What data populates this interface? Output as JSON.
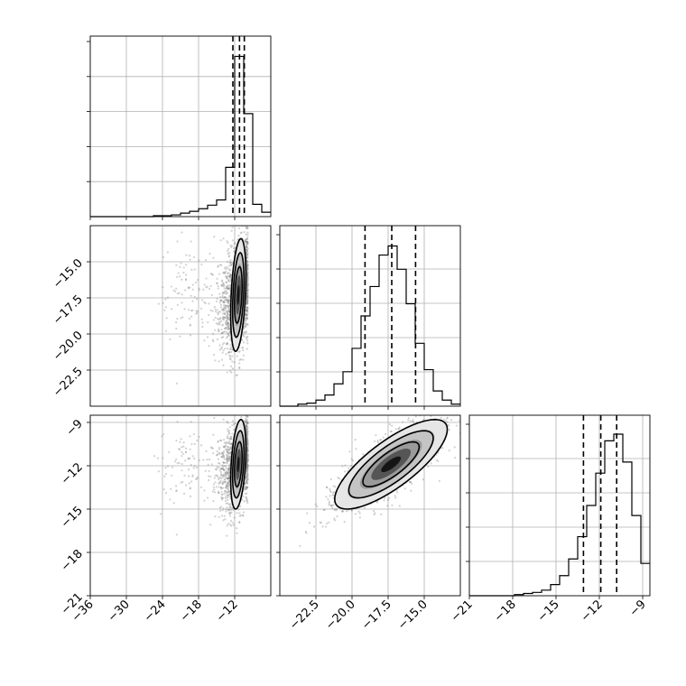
{
  "chart_data": {
    "type": "corner",
    "parameters": [
      {
        "range": [
          -36,
          -6
        ],
        "ticks": [
          -36,
          -30,
          -24,
          -18,
          -12
        ],
        "tick_labels": [
          "−36",
          "−30",
          "−24",
          "−18",
          "−12"
        ]
      },
      {
        "range": [
          -25,
          -12.5
        ],
        "ticks": [
          -22.5,
          -20.0,
          -17.5,
          -15.0
        ],
        "tick_labels": [
          "−22.5",
          "−20.0",
          "−17.5",
          "−15.0"
        ]
      },
      {
        "range": [
          -21,
          -8.5
        ],
        "ticks": [
          -21,
          -18,
          -15,
          -12,
          -9
        ],
        "tick_labels": [
          "−21",
          "−18",
          "−15",
          "−12",
          "−9"
        ]
      }
    ],
    "histograms": [
      {
        "param": 0,
        "bin_edges": [
          -36,
          -34.5,
          -33,
          -31.5,
          -30,
          -28.5,
          -27,
          -25.5,
          -24,
          -22.5,
          -21,
          -19.5,
          -18,
          -16.5,
          -15,
          -13.5,
          -12,
          -10.5,
          -9,
          -7.5,
          -6
        ],
        "counts": [
          0,
          0,
          0,
          0,
          0,
          0,
          0,
          1,
          1,
          2,
          4,
          6,
          9,
          13,
          19,
          56,
          182,
          117,
          14,
          5
        ],
        "quantiles": [
          -12.3,
          -11.2,
          -10.4
        ],
        "ymax": 205
      },
      {
        "param": 1,
        "bin_edges": [
          -25,
          -24.375,
          -23.75,
          -23.125,
          -22.5,
          -21.875,
          -21.25,
          -20.625,
          -20,
          -19.375,
          -18.75,
          -18.125,
          -17.5,
          -16.875,
          -16.25,
          -15.625,
          -15,
          -14.375,
          -13.75,
          -13.125,
          -12.5
        ],
        "counts": [
          0,
          0,
          2,
          3,
          6,
          11,
          22,
          34,
          57,
          89,
          118,
          149,
          158,
          135,
          101,
          62,
          36,
          15,
          6,
          2
        ],
        "quantiles": [
          -19.1,
          -17.25,
          -15.6
        ],
        "ymax": 178
      },
      {
        "param": 2,
        "bin_edges": [
          -21,
          -20.375,
          -19.75,
          -19.125,
          -18.5,
          -17.875,
          -17.25,
          -16.625,
          -16,
          -15.375,
          -14.75,
          -14.125,
          -13.5,
          -12.875,
          -12.25,
          -11.625,
          -11,
          -10.375,
          -9.75,
          -9.125,
          -8.5
        ],
        "counts": [
          0,
          0,
          0,
          0,
          0,
          1,
          2,
          3,
          5,
          10,
          18,
          33,
          53,
          81,
          110,
          139,
          145,
          120,
          72,
          29
        ],
        "quantiles": [
          -13.1,
          -11.9,
          -10.8
        ],
        "ymax": 162
      }
    ],
    "pairs": [
      {
        "x_param": 0,
        "y_param": 1,
        "mean": [
          -11.4,
          -17.3
        ],
        "sd": [
          1.5,
          1.95
        ],
        "corr": 0.35,
        "contour_sigmas": [
          1,
          1.5,
          2
        ]
      },
      {
        "x_param": 0,
        "y_param": 2,
        "mean": [
          -11.4,
          -11.9
        ],
        "sd": [
          1.5,
          1.55
        ],
        "corr": 0.35,
        "contour_sigmas": [
          1,
          1.5,
          2
        ]
      },
      {
        "x_param": 1,
        "y_param": 2,
        "mean": [
          -17.3,
          -11.9
        ],
        "sd": [
          1.95,
          1.55
        ],
        "corr": 0.78,
        "contour_sigmas": [
          1,
          1.5,
          2
        ]
      }
    ],
    "grid": true,
    "title": "",
    "legend": "none"
  }
}
